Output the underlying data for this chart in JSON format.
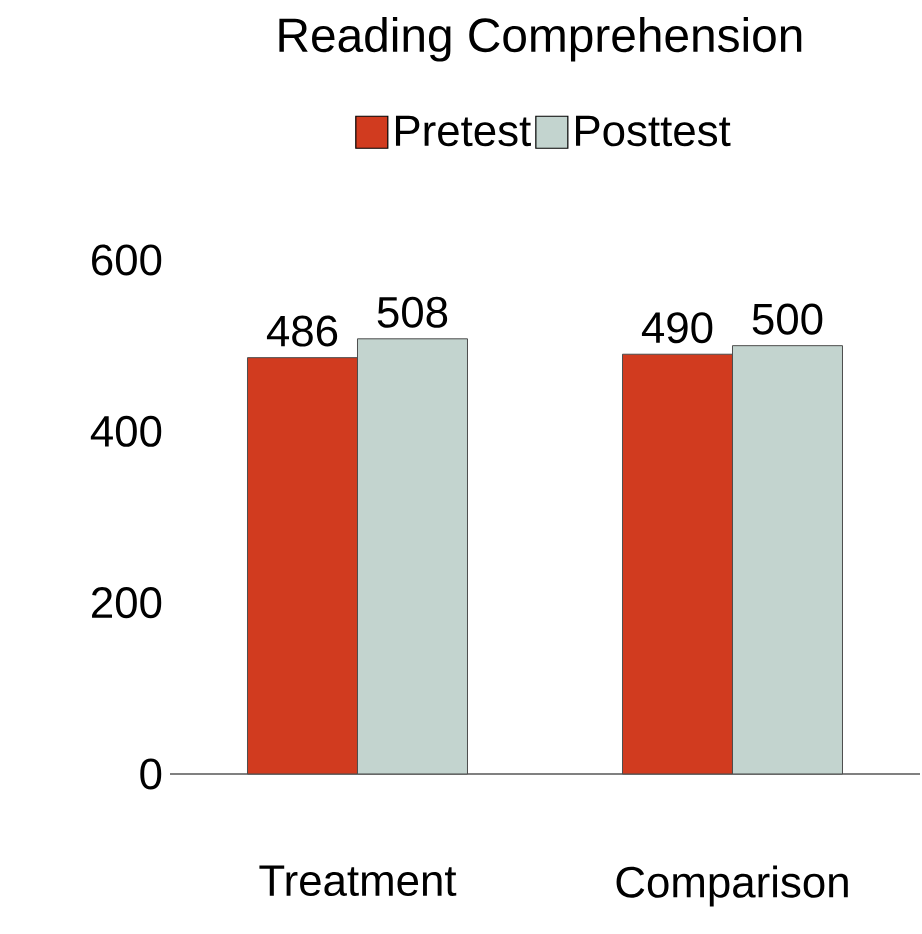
{
  "chart_data": {
    "type": "bar",
    "title": "Reading Comprehension",
    "categories": [
      "Treatment",
      "Comparison"
    ],
    "series": [
      {
        "name": "Pretest",
        "color": "#d13b1f",
        "values": [
          486,
          490
        ]
      },
      {
        "name": "Posttest",
        "color": "#c3d4cf",
        "values": [
          508,
          500
        ]
      }
    ],
    "ylim": [
      0,
      600
    ],
    "yticks": [
      0,
      200,
      400,
      600
    ],
    "legend": "top",
    "data_labels": true,
    "grid": false
  }
}
